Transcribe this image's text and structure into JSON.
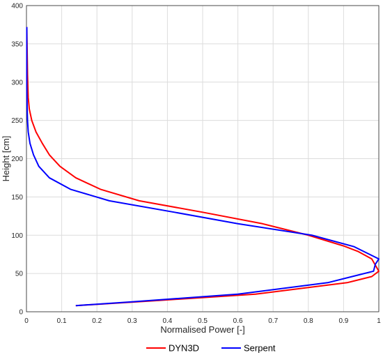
{
  "chart_data": {
    "type": "line",
    "title": "",
    "xlabel": "Normalised Power [-]",
    "ylabel": "Height [cm]",
    "xlim": [
      0,
      1
    ],
    "ylim": [
      0,
      400
    ],
    "x_ticks": [
      "0",
      "0.1",
      "0.2",
      "0.3",
      "0.4",
      "0.5",
      "0.6",
      "0.7",
      "0.8",
      "0.9",
      "1"
    ],
    "y_ticks": [
      "0",
      "50",
      "100",
      "150",
      "200",
      "250",
      "300",
      "350",
      "400"
    ],
    "grid": true,
    "legend_position": "bottom",
    "series": [
      {
        "name": "DYN3D",
        "color": "#ff0000",
        "points": [
          [
            0.14,
            8
          ],
          [
            0.35,
            14
          ],
          [
            0.65,
            23
          ],
          [
            0.91,
            38
          ],
          [
            0.98,
            46
          ],
          [
            1.0,
            53
          ],
          [
            0.98,
            69
          ],
          [
            0.94,
            79
          ],
          [
            0.9,
            86
          ],
          [
            0.8,
            100
          ],
          [
            0.67,
            115
          ],
          [
            0.5,
            130
          ],
          [
            0.32,
            145
          ],
          [
            0.21,
            160
          ],
          [
            0.14,
            175
          ],
          [
            0.095,
            190
          ],
          [
            0.065,
            205
          ],
          [
            0.045,
            220
          ],
          [
            0.027,
            235
          ],
          [
            0.015,
            250
          ],
          [
            0.008,
            265
          ],
          [
            0.005,
            280
          ],
          [
            0.004,
            295
          ],
          [
            0.003,
            310
          ],
          [
            0.0025,
            325
          ],
          [
            0.002,
            340
          ],
          [
            0.0015,
            355
          ],
          [
            0.001,
            372
          ]
        ]
      },
      {
        "name": "Serpent",
        "color": "#0000ff",
        "points": [
          [
            0.14,
            8
          ],
          [
            0.3,
            13
          ],
          [
            0.6,
            23
          ],
          [
            0.855,
            38
          ],
          [
            0.985,
            53
          ],
          [
            0.99,
            62
          ],
          [
            1.0,
            69
          ],
          [
            0.93,
            85
          ],
          [
            0.81,
            100
          ],
          [
            0.6,
            115
          ],
          [
            0.42,
            130
          ],
          [
            0.235,
            145
          ],
          [
            0.125,
            160
          ],
          [
            0.065,
            175
          ],
          [
            0.035,
            190
          ],
          [
            0.02,
            205
          ],
          [
            0.01,
            220
          ],
          [
            0.005,
            235
          ],
          [
            0.003,
            250
          ],
          [
            0.002,
            265
          ],
          [
            0.0015,
            280
          ],
          [
            0.001,
            295
          ],
          [
            0.001,
            310
          ],
          [
            0.001,
            325
          ],
          [
            0.001,
            340
          ],
          [
            0.001,
            355
          ],
          [
            0.001,
            372
          ]
        ]
      }
    ]
  },
  "colors": {
    "grid": "#dcdcdc",
    "axis": "#262626",
    "legend_border": "#ffffff"
  }
}
